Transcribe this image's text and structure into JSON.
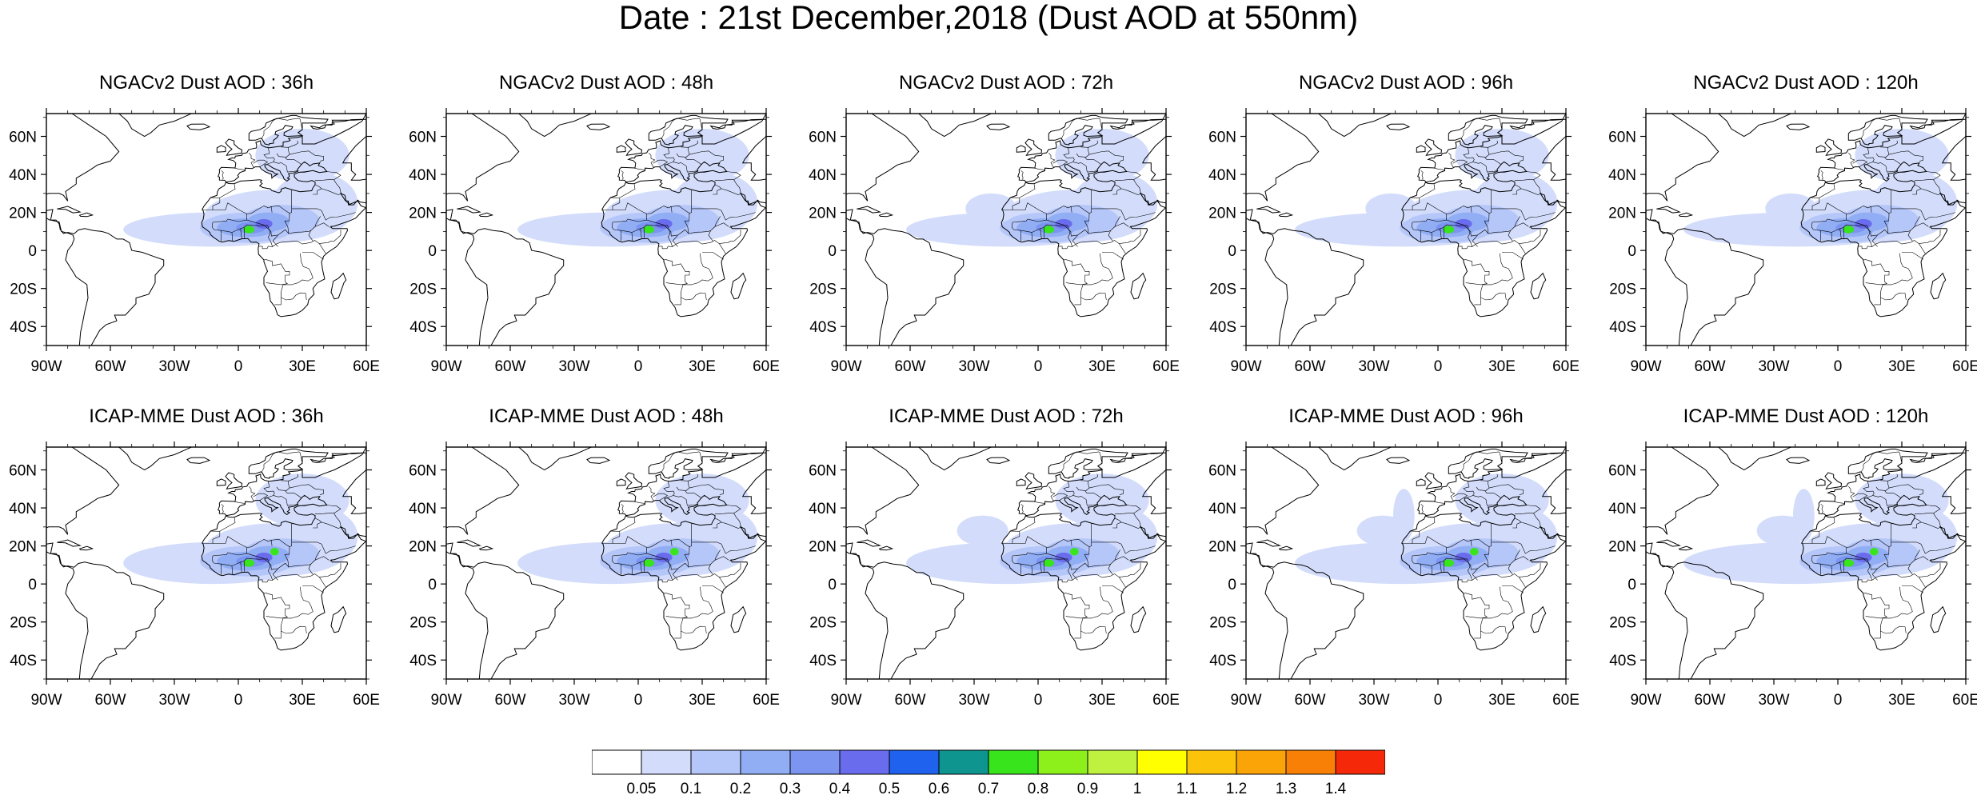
{
  "title": "Date : 21st December,2018 (Dust AOD at 550nm)",
  "panels": [
    {
      "title": "NGACv2 Dust AOD : 36h"
    },
    {
      "title": "NGACv2 Dust AOD : 48h"
    },
    {
      "title": "NGACv2 Dust AOD : 72h"
    },
    {
      "title": "NGACv2 Dust AOD : 96h"
    },
    {
      "title": "NGACv2 Dust AOD : 120h"
    },
    {
      "title": "ICAP-MME Dust AOD : 36h"
    },
    {
      "title": "ICAP-MME Dust AOD : 48h"
    },
    {
      "title": "ICAP-MME Dust AOD : 72h"
    },
    {
      "title": "ICAP-MME Dust AOD : 96h"
    },
    {
      "title": "ICAP-MME Dust AOD : 120h"
    }
  ],
  "map": {
    "lon_range": [
      -90,
      60
    ],
    "lat_range": [
      -50,
      72
    ],
    "lon_ticks": [
      {
        "value": -90,
        "label": "90W"
      },
      {
        "value": -60,
        "label": "60W"
      },
      {
        "value": -30,
        "label": "30W"
      },
      {
        "value": 0,
        "label": "0"
      },
      {
        "value": 30,
        "label": "30E"
      },
      {
        "value": 60,
        "label": "60E"
      }
    ],
    "lat_ticks": [
      {
        "value": 60,
        "label": "60N"
      },
      {
        "value": 40,
        "label": "40N"
      },
      {
        "value": 20,
        "label": "20N"
      },
      {
        "value": 0,
        "label": "0"
      },
      {
        "value": -20,
        "label": "20S"
      },
      {
        "value": -40,
        "label": "40S"
      }
    ]
  },
  "colorbar": {
    "labels": [
      "0.05",
      "0.1",
      "0.2",
      "0.3",
      "0.4",
      "0.5",
      "0.6",
      "0.7",
      "0.8",
      "0.9",
      "1",
      "1.1",
      "1.2",
      "1.3",
      "1.4"
    ],
    "colors": [
      "#ffffff",
      "#d3ddfb",
      "#b5c6f9",
      "#91aef5",
      "#7c95f1",
      "#6a6cee",
      "#1f62ee",
      "#0e9590",
      "#38e41b",
      "#8ef01a",
      "#bff23f",
      "#ffff00",
      "#fbc40a",
      "#fba408",
      "#f98006",
      "#f52809"
    ]
  },
  "dust_levels": [
    {
      "level": 0.05,
      "color": "#d3ddfb"
    },
    {
      "level": 0.1,
      "color": "#b5c6f9"
    },
    {
      "level": 0.2,
      "color": "#91aef5"
    },
    {
      "level": 0.3,
      "color": "#7c95f1"
    },
    {
      "level": 0.5,
      "color": "#6a6cee"
    },
    {
      "level": 0.8,
      "color": "#38e41b"
    }
  ]
}
